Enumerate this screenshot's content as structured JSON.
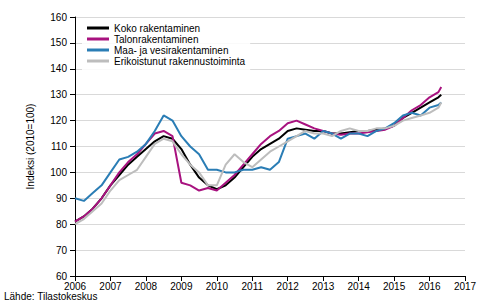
{
  "chart_data": {
    "type": "line",
    "y_label": "Indeksi (2010=100)",
    "annotation": "Lähde: Tilastokeskus",
    "x": [
      2006,
      2006.25,
      2006.5,
      2006.75,
      2007,
      2007.25,
      2007.5,
      2007.75,
      2008,
      2008.25,
      2008.5,
      2008.75,
      2009,
      2009.25,
      2009.5,
      2009.75,
      2010,
      2010.25,
      2010.5,
      2010.75,
      2011,
      2011.25,
      2011.5,
      2011.75,
      2012,
      2012.25,
      2012.5,
      2012.75,
      2013,
      2013.25,
      2013.5,
      2013.75,
      2014,
      2014.25,
      2014.5,
      2014.75,
      2015,
      2015.25,
      2015.5,
      2015.75,
      2016,
      2016.25,
      2016.33
    ],
    "series": [
      {
        "name": "Koko rakentaminen",
        "color": "#000000",
        "values": [
          81,
          83,
          86,
          90,
          95,
          99,
          103,
          106,
          109,
          112,
          114,
          113,
          109,
          103,
          98,
          95,
          93.5,
          95,
          98,
          102,
          106,
          109,
          111,
          113,
          116,
          117,
          116.5,
          116,
          116,
          115,
          115,
          115.5,
          116,
          116,
          116.5,
          117,
          118,
          121,
          123,
          125,
          127,
          129,
          130
        ]
      },
      {
        "name": "Talonrakentaminen",
        "color": "#a8127f",
        "values": [
          81,
          83,
          86,
          90,
          95,
          100,
          104,
          107,
          111,
          115,
          116,
          114,
          96,
          95,
          93,
          94,
          93,
          96,
          99,
          103,
          107,
          111,
          114,
          116,
          119,
          120,
          118.5,
          117,
          116,
          115,
          114.5,
          115,
          115,
          115.5,
          116,
          116.5,
          118,
          121,
          124,
          126,
          129,
          131,
          133
        ]
      },
      {
        "name": "Maa- ja vesirakentaminen",
        "color": "#2a7db5",
        "values": [
          90,
          89,
          92,
          95,
          100,
          105,
          106,
          108,
          111,
          116,
          122,
          120,
          114,
          110,
          107,
          101,
          101,
          100,
          100,
          101,
          101,
          102,
          101,
          104,
          113,
          114,
          115,
          113,
          116,
          115,
          113,
          115,
          115,
          114,
          116,
          117,
          119,
          122,
          123,
          122,
          125,
          126,
          127
        ]
      },
      {
        "name": "Erikoistunut rakennustoiminta",
        "color": "#bdbdbd",
        "values": [
          80,
          82,
          85,
          88,
          93,
          97,
          99,
          101,
          106,
          111,
          113,
          112,
          107,
          103,
          100,
          95,
          95,
          103,
          107,
          104,
          102,
          105,
          108,
          110,
          112,
          114,
          116,
          115,
          115,
          114,
          116,
          117,
          116,
          116,
          117,
          117,
          118,
          120,
          121,
          122,
          123,
          125,
          127
        ]
      }
    ],
    "xlim": [
      2006,
      2017
    ],
    "xticks": [
      2006,
      2007,
      2008,
      2009,
      2010,
      2011,
      2012,
      2013,
      2014,
      2015,
      2016,
      2017
    ],
    "ylim": [
      60,
      160
    ],
    "yticks": [
      60,
      70,
      80,
      90,
      100,
      110,
      120,
      130,
      140,
      150,
      160
    ],
    "grid": true,
    "legend": "upper left"
  }
}
